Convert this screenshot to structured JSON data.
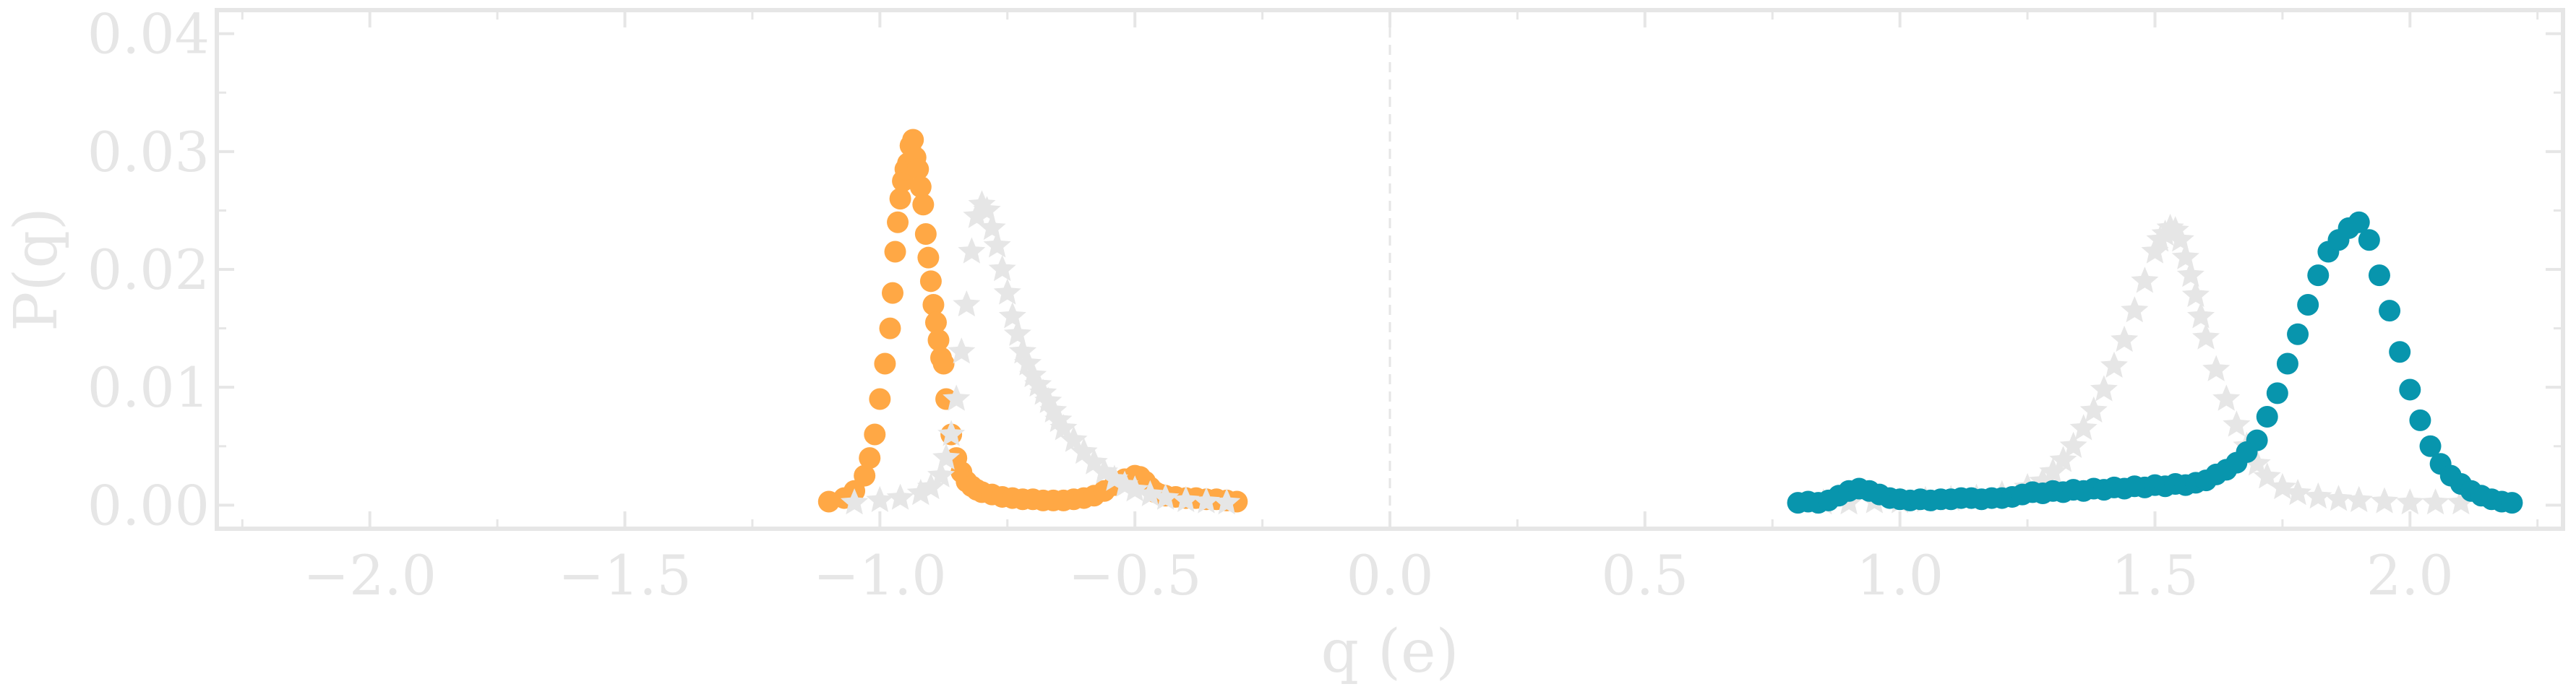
{
  "chart_data": {
    "type": "scatter",
    "xlabel": "q (e)",
    "ylabel": "P(q)",
    "xlim": [
      -2.3,
      2.3
    ],
    "ylim": [
      -0.002,
      0.042
    ],
    "xticks": [
      -2.0,
      -1.5,
      -1.0,
      -0.5,
      0.0,
      0.5,
      1.0,
      1.5,
      2.0
    ],
    "xtick_labels": [
      "−2.0",
      "−1.5",
      "−1.0",
      "−0.5",
      "0.0",
      "0.5",
      "1.0",
      "1.5",
      "2.0"
    ],
    "yticks": [
      0.0,
      0.01,
      0.02,
      0.03,
      0.04
    ],
    "ytick_labels": [
      "0.00",
      "0.01",
      "0.02",
      "0.03",
      "0.04"
    ],
    "reference_line_x": 0.0,
    "grid": false,
    "colors": {
      "orange": "#ffa845",
      "teal": "#0895ad",
      "gray": "#e6e6e6"
    },
    "series": [
      {
        "color": "orange",
        "marker": "circle",
        "x": [
          -1.1,
          -1.07,
          -1.05,
          -1.03,
          -1.02,
          -1.01,
          -1.0,
          -0.99,
          -0.98,
          -0.975,
          -0.97,
          -0.965,
          -0.96,
          -0.955,
          -0.95,
          -0.945,
          -0.94,
          -0.935,
          -0.93,
          -0.925,
          -0.92,
          -0.915,
          -0.91,
          -0.905,
          -0.9,
          -0.895,
          -0.89,
          -0.885,
          -0.88,
          -0.875,
          -0.87,
          -0.86,
          -0.85,
          -0.84,
          -0.83,
          -0.82,
          -0.81,
          -0.8,
          -0.78,
          -0.76,
          -0.74,
          -0.72,
          -0.7,
          -0.68,
          -0.66,
          -0.64,
          -0.62,
          -0.6,
          -0.58,
          -0.56,
          -0.54,
          -0.52,
          -0.5,
          -0.49,
          -0.48,
          -0.47,
          -0.46,
          -0.45,
          -0.44,
          -0.42,
          -0.4,
          -0.38,
          -0.36,
          -0.34,
          -0.32,
          -0.3
        ],
        "y": [
          0.0003,
          0.0006,
          0.0012,
          0.0025,
          0.004,
          0.006,
          0.009,
          0.012,
          0.015,
          0.018,
          0.0215,
          0.024,
          0.026,
          0.0275,
          0.0285,
          0.029,
          0.0305,
          0.031,
          0.0295,
          0.0285,
          0.027,
          0.0255,
          0.023,
          0.021,
          0.019,
          0.017,
          0.0155,
          0.014,
          0.0125,
          0.012,
          0.009,
          0.006,
          0.004,
          0.0028,
          0.002,
          0.0016,
          0.0013,
          0.0011,
          0.0009,
          0.0007,
          0.0006,
          0.0005,
          0.0005,
          0.0004,
          0.0004,
          0.0004,
          0.0005,
          0.0006,
          0.0008,
          0.0012,
          0.0017,
          0.0022,
          0.0025,
          0.0024,
          0.002,
          0.0015,
          0.0011,
          0.0009,
          0.0008,
          0.0007,
          0.0006,
          0.0006,
          0.0005,
          0.0005,
          0.0004,
          0.0003
        ]
      },
      {
        "color": "gray",
        "marker": "star",
        "x": [
          -1.05,
          -1.0,
          -0.96,
          -0.92,
          -0.9,
          -0.88,
          -0.87,
          -0.86,
          -0.85,
          -0.84,
          -0.83,
          -0.82,
          -0.81,
          -0.8,
          -0.79,
          -0.78,
          -0.77,
          -0.76,
          -0.75,
          -0.74,
          -0.73,
          -0.72,
          -0.71,
          -0.7,
          -0.69,
          -0.68,
          -0.67,
          -0.66,
          -0.65,
          -0.64,
          -0.62,
          -0.6,
          -0.58,
          -0.56,
          -0.54,
          -0.52,
          -0.5,
          -0.47,
          -0.44,
          -0.4,
          -0.36,
          -0.32
        ],
        "y": [
          0.0002,
          0.0004,
          0.0006,
          0.001,
          0.0015,
          0.0025,
          0.004,
          0.006,
          0.009,
          0.013,
          0.017,
          0.0215,
          0.0245,
          0.0255,
          0.025,
          0.0235,
          0.022,
          0.02,
          0.018,
          0.016,
          0.0145,
          0.013,
          0.012,
          0.011,
          0.0102,
          0.0095,
          0.0088,
          0.008,
          0.0072,
          0.0065,
          0.0055,
          0.0045,
          0.0036,
          0.0028,
          0.0022,
          0.0017,
          0.0013,
          0.0009,
          0.0006,
          0.0004,
          0.0003,
          0.0002
        ]
      },
      {
        "color": "gray",
        "marker": "star",
        "x": [
          0.85,
          0.9,
          0.95,
          1.0,
          1.05,
          1.1,
          1.15,
          1.2,
          1.25,
          1.28,
          1.3,
          1.32,
          1.34,
          1.36,
          1.38,
          1.4,
          1.42,
          1.44,
          1.46,
          1.48,
          1.5,
          1.51,
          1.52,
          1.53,
          1.54,
          1.55,
          1.56,
          1.57,
          1.58,
          1.59,
          1.6,
          1.62,
          1.64,
          1.66,
          1.68,
          1.7,
          1.72,
          1.75,
          1.78,
          1.82,
          1.86,
          1.9,
          1.95,
          2.0,
          2.05,
          2.1
        ],
        "y": [
          0.0002,
          0.0002,
          0.0003,
          0.0003,
          0.0004,
          0.0005,
          0.0006,
          0.0009,
          0.0015,
          0.002,
          0.0028,
          0.0038,
          0.005,
          0.0065,
          0.008,
          0.0098,
          0.0118,
          0.014,
          0.0165,
          0.019,
          0.0215,
          0.0225,
          0.023,
          0.0235,
          0.0233,
          0.0225,
          0.021,
          0.0195,
          0.0178,
          0.016,
          0.0142,
          0.0115,
          0.009,
          0.0068,
          0.005,
          0.0035,
          0.0024,
          0.0015,
          0.001,
          0.0007,
          0.0005,
          0.0004,
          0.0003,
          0.0002,
          0.0002,
          0.0002
        ]
      },
      {
        "color": "teal",
        "marker": "circle",
        "x": [
          0.8,
          0.82,
          0.84,
          0.86,
          0.88,
          0.9,
          0.92,
          0.94,
          0.96,
          0.98,
          1.0,
          1.02,
          1.04,
          1.06,
          1.08,
          1.1,
          1.12,
          1.14,
          1.16,
          1.18,
          1.2,
          1.22,
          1.24,
          1.26,
          1.28,
          1.3,
          1.32,
          1.34,
          1.36,
          1.38,
          1.4,
          1.42,
          1.44,
          1.46,
          1.48,
          1.5,
          1.52,
          1.54,
          1.56,
          1.58,
          1.6,
          1.62,
          1.64,
          1.66,
          1.68,
          1.7,
          1.72,
          1.74,
          1.76,
          1.78,
          1.8,
          1.82,
          1.84,
          1.86,
          1.88,
          1.9,
          1.92,
          1.94,
          1.96,
          1.98,
          2.0,
          2.02,
          2.04,
          2.06,
          2.08,
          2.1,
          2.12,
          2.14,
          2.16,
          2.18,
          2.2
        ],
        "y": [
          0.0002,
          0.0003,
          0.0002,
          0.0004,
          0.0008,
          0.0012,
          0.0014,
          0.0012,
          0.0009,
          0.0006,
          0.0005,
          0.0004,
          0.0005,
          0.0004,
          0.0005,
          0.0005,
          0.0006,
          0.0006,
          0.0005,
          0.0006,
          0.0006,
          0.0007,
          0.0009,
          0.0011,
          0.001,
          0.0012,
          0.0011,
          0.0013,
          0.0012,
          0.0014,
          0.0013,
          0.0015,
          0.0014,
          0.0016,
          0.0015,
          0.0017,
          0.0016,
          0.0018,
          0.0017,
          0.0019,
          0.0021,
          0.0026,
          0.003,
          0.0036,
          0.0045,
          0.0055,
          0.0075,
          0.0095,
          0.012,
          0.0145,
          0.017,
          0.0195,
          0.0215,
          0.0225,
          0.0235,
          0.024,
          0.0225,
          0.0195,
          0.0165,
          0.013,
          0.0098,
          0.0072,
          0.005,
          0.0035,
          0.0025,
          0.0018,
          0.0012,
          0.0008,
          0.0005,
          0.0003,
          0.0002
        ]
      }
    ]
  }
}
